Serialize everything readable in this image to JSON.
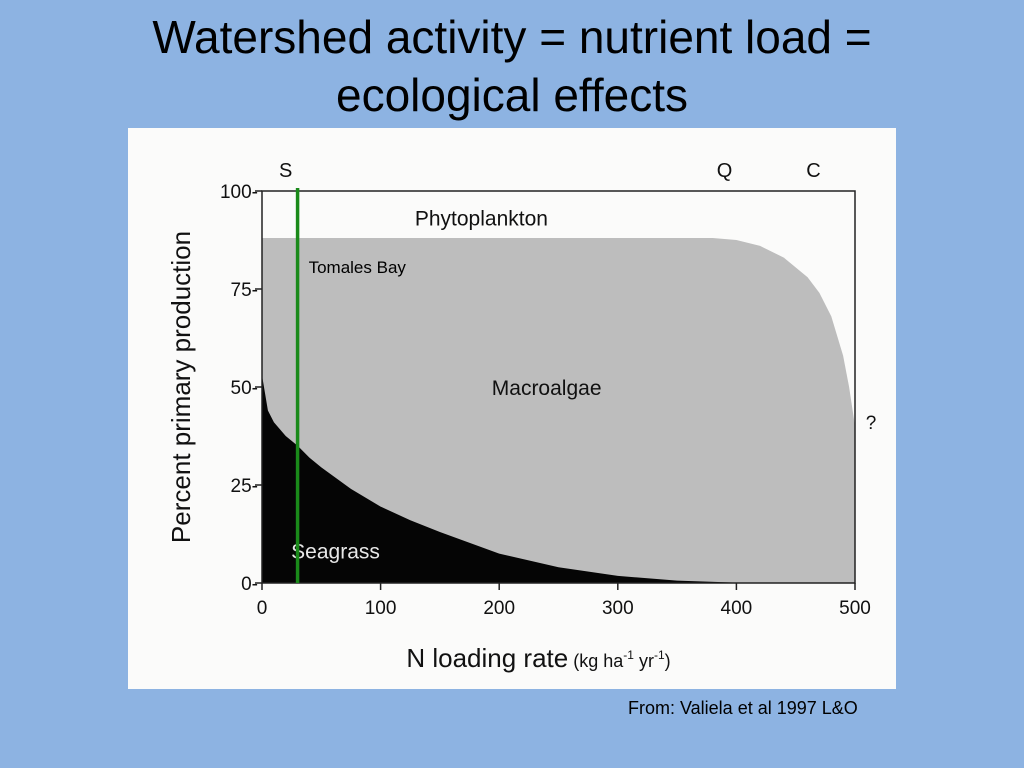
{
  "slide": {
    "title_line1": "Watershed activity = nutrient load =",
    "title_line2": "ecological effects",
    "credit": "From: Valiela et al 1997 L&O"
  },
  "chart_data": {
    "type": "area",
    "xlabel": "N  loading rate",
    "xlabel_units_prefix": "(kg ha",
    "xlabel_units_exp1": "-1",
    "xlabel_units_mid": " yr",
    "xlabel_units_exp2": "-1",
    "xlabel_units_suffix": ")",
    "ylabel": "Percent primary production",
    "xlim": [
      0,
      500
    ],
    "ylim": [
      0,
      100
    ],
    "x_ticks": [
      0,
      100,
      200,
      300,
      400,
      500
    ],
    "x_tick_labels": [
      "0",
      "100",
      "200",
      "300",
      "400",
      "500"
    ],
    "y_ticks": [
      0,
      25,
      50,
      75,
      100
    ],
    "y_tick_labels": [
      "0-",
      "25-",
      "50-",
      "75-",
      "100-"
    ],
    "top_labels": [
      {
        "text": "S",
        "x": 20
      },
      {
        "text": "Q",
        "x": 390
      },
      {
        "text": "C",
        "x": 465
      }
    ],
    "question_mark": "?",
    "marker": {
      "label": "Tomales Bay",
      "x": 30,
      "color": "#1a8a1a"
    },
    "series": [
      {
        "name": "Seagrass",
        "fill": "#050505",
        "x": [
          0,
          5,
          10,
          20,
          30,
          40,
          50,
          75,
          100,
          125,
          150,
          200,
          250,
          300,
          350,
          400,
          500
        ],
        "y": [
          53,
          44,
          41,
          37.5,
          35,
          32,
          29.5,
          24,
          19.5,
          16,
          13,
          7.5,
          4,
          1.8,
          0.6,
          0.1,
          0
        ]
      },
      {
        "name": "Macroalgae",
        "fill": "#bdbdbd",
        "x": [
          0,
          100,
          200,
          300,
          380,
          400,
          420,
          440,
          460,
          470,
          480,
          490,
          495,
          500
        ],
        "y": [
          88,
          88,
          88,
          88,
          88,
          87.5,
          86,
          83,
          78,
          74,
          68,
          58,
          50,
          40
        ]
      },
      {
        "name": "Phytoplankton",
        "fill": "#fbfbfa",
        "x": [
          0,
          500
        ],
        "y": [
          100,
          100
        ]
      }
    ]
  }
}
